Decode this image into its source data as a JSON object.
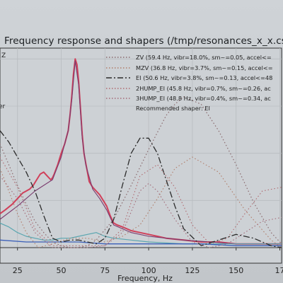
{
  "chart_data": {
    "type": "line",
    "title": "Frequency response and shapers (/tmp/resonances_x_x.csv)",
    "xlabel": "Frequency, Hz",
    "ylabel_fragment": "Z",
    "ylabel_fragment2": "er",
    "x_ticks": [
      "25",
      "50",
      "75",
      "100",
      "125",
      "150",
      "17"
    ],
    "xlim": [
      15,
      176
    ],
    "ylim": [
      0,
      1.05
    ],
    "grid": true,
    "legend_position": "top-right",
    "legend": [
      {
        "label": "ZV (59.4 Hz, vibr=18.0%, sm~=0.05, accel<=",
        "style": "dotted",
        "color": "#8a6a6e"
      },
      {
        "label": "MZV (36.8 Hz, vibr=3.7%, sm~=0.15, accel<=",
        "style": "dotted",
        "color": "#b07c68"
      },
      {
        "label": "EI (50.6 Hz, vibr=3.8%, sm~=0.13, accel<=48",
        "style": "dashdot",
        "color": "#2b2b2b"
      },
      {
        "label": "2HUMP_EI (45.8 Hz, vibr=0.7%, sm~=0.26, ac",
        "style": "dotted",
        "color": "#b06a70"
      },
      {
        "label": "3HUMP_EI (48.8 Hz, vibr=0.4%, sm~=0.34, ac",
        "style": "dotted",
        "color": "#a36a78"
      }
    ],
    "legend_note": "Recommended shaper: EI",
    "series": [
      {
        "style": "solid",
        "color": "#d0405a",
        "width": 2.0,
        "x": [
          15,
          18,
          22,
          25,
          28,
          30,
          32,
          34,
          36,
          38,
          40,
          42,
          44,
          45,
          46,
          48,
          50,
          52,
          54,
          55,
          56,
          57,
          58,
          59,
          60,
          61,
          62,
          63,
          64,
          65,
          66,
          68,
          70,
          72,
          74,
          76,
          78,
          80,
          82,
          85,
          90,
          95,
          100,
          105,
          110,
          120,
          130,
          140,
          150,
          160,
          170,
          176
        ],
        "y": [
          0.18,
          0.2,
          0.23,
          0.26,
          0.29,
          0.3,
          0.31,
          0.33,
          0.36,
          0.39,
          0.4,
          0.38,
          0.36,
          0.37,
          0.39,
          0.44,
          0.5,
          0.55,
          0.62,
          0.7,
          0.8,
          0.92,
          1.0,
          0.97,
          0.88,
          0.74,
          0.6,
          0.5,
          0.45,
          0.4,
          0.35,
          0.32,
          0.3,
          0.28,
          0.25,
          0.22,
          0.17,
          0.13,
          0.12,
          0.11,
          0.09,
          0.08,
          0.07,
          0.06,
          0.05,
          0.04,
          0.03,
          0.03,
          0.02,
          0.02,
          0.02,
          0.02
        ]
      },
      {
        "style": "solid",
        "color": "#7b3b6e",
        "width": 1.1,
        "x": [
          15,
          25,
          35,
          45,
          50,
          54,
          56,
          58,
          60,
          62,
          64,
          68,
          72,
          76,
          80,
          90,
          100,
          120,
          150,
          176
        ],
        "y": [
          0.15,
          0.22,
          0.3,
          0.36,
          0.48,
          0.62,
          0.78,
          0.99,
          0.86,
          0.58,
          0.44,
          0.31,
          0.26,
          0.2,
          0.12,
          0.08,
          0.06,
          0.04,
          0.02,
          0.02
        ]
      },
      {
        "style": "solid",
        "color": "#5aa6b0",
        "width": 1.2,
        "x": [
          15,
          20,
          25,
          30,
          35,
          40,
          45,
          50,
          55,
          60,
          65,
          70,
          75,
          80,
          90,
          100,
          120,
          150,
          176
        ],
        "y": [
          0.13,
          0.11,
          0.08,
          0.06,
          0.05,
          0.04,
          0.04,
          0.05,
          0.05,
          0.06,
          0.07,
          0.08,
          0.06,
          0.05,
          0.04,
          0.03,
          0.02,
          0.02,
          0.02
        ]
      },
      {
        "style": "solid",
        "color": "#3b5fb8",
        "width": 1.3,
        "x": [
          15,
          30,
          45,
          60,
          75,
          90,
          110,
          130,
          150,
          176
        ],
        "y": [
          0.04,
          0.03,
          0.03,
          0.03,
          0.02,
          0.02,
          0.02,
          0.02,
          0.01,
          0.01
        ]
      },
      {
        "style": "dotted",
        "color": "#8a6a6e",
        "width": 1.2,
        "x": [
          15,
          20,
          25,
          30,
          35,
          40,
          45,
          50,
          55,
          59.4,
          65,
          70,
          80,
          90,
          100,
          110,
          115,
          120,
          130,
          140,
          150,
          160,
          170,
          176
        ],
        "y": [
          0.55,
          0.44,
          0.33,
          0.23,
          0.14,
          0.08,
          0.03,
          0.01,
          0.0,
          0.0,
          0.01,
          0.04,
          0.15,
          0.33,
          0.52,
          0.7,
          0.76,
          0.8,
          0.76,
          0.62,
          0.44,
          0.24,
          0.08,
          0.02
        ]
      },
      {
        "style": "dotted",
        "color": "#b07c68",
        "width": 1.1,
        "x": [
          15,
          20,
          25,
          30,
          36.8,
          45,
          55,
          65,
          75,
          85,
          95,
          105,
          115,
          125,
          140,
          155,
          170,
          176
        ],
        "y": [
          0.42,
          0.3,
          0.18,
          0.08,
          0.0,
          0.02,
          0.05,
          0.05,
          0.03,
          0.06,
          0.12,
          0.26,
          0.42,
          0.48,
          0.4,
          0.2,
          0.04,
          0.0
        ]
      },
      {
        "style": "dashdot",
        "color": "#2b2b2b",
        "width": 1.3,
        "x": [
          15,
          20,
          25,
          30,
          35,
          40,
          45,
          50,
          55,
          60,
          65,
          70,
          75,
          80,
          85,
          90,
          95,
          100,
          105,
          110,
          115,
          120,
          130,
          140,
          150,
          160,
          170,
          176
        ],
        "y": [
          0.62,
          0.56,
          0.48,
          0.4,
          0.3,
          0.17,
          0.05,
          0.03,
          0.04,
          0.04,
          0.03,
          0.02,
          0.05,
          0.15,
          0.33,
          0.5,
          0.58,
          0.58,
          0.5,
          0.36,
          0.22,
          0.1,
          0.01,
          0.04,
          0.07,
          0.05,
          0.01,
          0.0
        ]
      },
      {
        "style": "dotted",
        "color": "#b06a70",
        "width": 1.1,
        "x": [
          15,
          25,
          35,
          45,
          55,
          65,
          75,
          85,
          95,
          105,
          115,
          125,
          135,
          145,
          155,
          165,
          176
        ],
        "y": [
          0.48,
          0.32,
          0.1,
          0.01,
          0.01,
          0.01,
          0.01,
          0.1,
          0.38,
          0.44,
          0.32,
          0.12,
          0.02,
          0.05,
          0.18,
          0.3,
          0.32
        ]
      },
      {
        "style": "dotted",
        "color": "#a36a78",
        "width": 1.1,
        "x": [
          15,
          25,
          35,
          45,
          55,
          65,
          75,
          85,
          95,
          100,
          105,
          115,
          125,
          135,
          145,
          155,
          165,
          176
        ],
        "y": [
          0.38,
          0.26,
          0.08,
          0.0,
          0.0,
          0.0,
          0.01,
          0.08,
          0.3,
          0.34,
          0.3,
          0.15,
          0.03,
          0.0,
          0.02,
          0.08,
          0.14,
          0.16
        ]
      }
    ]
  }
}
